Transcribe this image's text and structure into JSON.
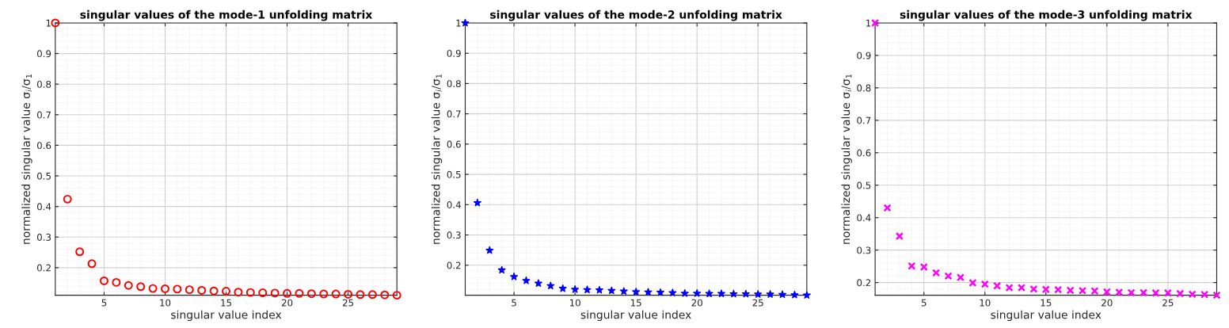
{
  "chart_data": [
    {
      "type": "scatter",
      "title": "singular values of the mode-1 unfolding matrix",
      "xlabel": "singular value index",
      "ylabel": "normalized singular value σ$_{i}$/σ$_{1}$",
      "x": [
        1,
        2,
        3,
        4,
        5,
        6,
        7,
        8,
        9,
        10,
        11,
        12,
        13,
        14,
        15,
        16,
        17,
        18,
        19,
        20,
        21,
        22,
        23,
        24,
        25,
        26,
        27,
        28,
        29
      ],
      "series": [
        {
          "color": "#ff0000",
          "values": [
            1,
            0.424,
            0.252,
            0.213,
            0.157,
            0.152,
            0.142,
            0.138,
            0.132,
            0.131,
            0.13,
            0.128,
            0.126,
            0.124,
            0.123,
            0.12,
            0.119,
            0.118,
            0.117,
            0.116,
            0.116,
            0.115,
            0.114,
            0.114,
            0.113,
            0.112,
            0.112,
            0.111,
            0.11
          ]
        }
      ],
      "marker": "circle",
      "xlim": [
        1,
        29
      ],
      "xticks": [
        5,
        10,
        15,
        20,
        25
      ],
      "ylim": [
        0.11,
        1
      ],
      "yticks": [
        0.2,
        0.3,
        0.4,
        0.5,
        0.6,
        0.7,
        0.8,
        0.9,
        1
      ],
      "grid": true,
      "legend": false
    },
    {
      "type": "scatter",
      "title": "singular values of the mode-2 unfolding matrix",
      "xlabel": "singular value index",
      "ylabel": "normalized singular value σ$_{i}$/σ$_{1}$",
      "x": [
        1,
        2,
        3,
        4,
        5,
        6,
        7,
        8,
        9,
        10,
        11,
        12,
        13,
        14,
        15,
        16,
        17,
        18,
        19,
        20,
        21,
        22,
        23,
        24,
        25,
        26,
        27,
        28,
        29
      ],
      "series": [
        {
          "color": "#0000ff",
          "values": [
            1,
            0.406,
            0.249,
            0.184,
            0.162,
            0.149,
            0.14,
            0.132,
            0.123,
            0.12,
            0.119,
            0.118,
            0.116,
            0.114,
            0.112,
            0.111,
            0.11,
            0.109,
            0.107,
            0.107,
            0.106,
            0.106,
            0.105,
            0.105,
            0.104,
            0.104,
            0.103,
            0.102,
            0.101
          ]
        }
      ],
      "marker": "star",
      "xlim": [
        1,
        29
      ],
      "xticks": [
        5,
        10,
        15,
        20,
        25
      ],
      "ylim": [
        0.101,
        1
      ],
      "yticks": [
        0.2,
        0.3,
        0.4,
        0.5,
        0.6,
        0.7,
        0.8,
        0.9,
        1
      ],
      "grid": true,
      "legend": false
    },
    {
      "type": "scatter",
      "title": "singular values of the mode-3 unfolding matrix",
      "xlabel": "singular value index",
      "ylabel": "normalized singular value σ$_{i}$/σ$_{1}$",
      "x": [
        1,
        2,
        3,
        4,
        5,
        6,
        7,
        8,
        9,
        10,
        11,
        12,
        13,
        14,
        15,
        16,
        17,
        18,
        19,
        20,
        21,
        22,
        23,
        24,
        25,
        26,
        27,
        28,
        29
      ],
      "series": [
        {
          "color": "#ff00ff",
          "values": [
            1,
            0.43,
            0.343,
            0.251,
            0.248,
            0.23,
            0.22,
            0.216,
            0.199,
            0.195,
            0.19,
            0.184,
            0.184,
            0.18,
            0.179,
            0.178,
            0.176,
            0.175,
            0.174,
            0.171,
            0.17,
            0.169,
            0.169,
            0.168,
            0.168,
            0.166,
            0.164,
            0.163,
            0.161
          ]
        }
      ],
      "marker": "cross",
      "xlim": [
        1,
        29
      ],
      "xticks": [
        5,
        10,
        15,
        20,
        25
      ],
      "ylim": [
        0.161,
        1
      ],
      "yticks": [
        0.2,
        0.3,
        0.4,
        0.5,
        0.6,
        0.7,
        0.8,
        0.9,
        1
      ],
      "grid": true,
      "legend": false
    }
  ]
}
